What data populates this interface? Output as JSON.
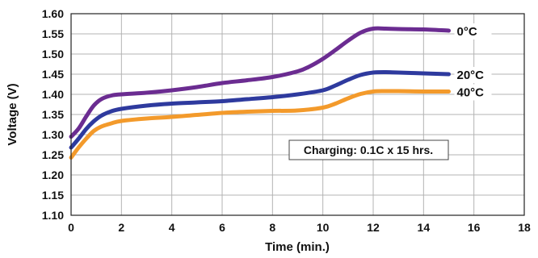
{
  "chart_data": {
    "type": "line",
    "xlabel": "Time (min.)",
    "ylabel": "Voltage (V)",
    "xlim": [
      0,
      18
    ],
    "ylim": [
      1.1,
      1.6
    ],
    "x_ticks": [
      "0",
      "2",
      "4",
      "6",
      "8",
      "10",
      "12",
      "14",
      "16",
      "18"
    ],
    "y_ticks": [
      "1.10",
      "1.15",
      "1.20",
      "1.25",
      "1.30",
      "1.35",
      "1.40",
      "1.45",
      "1.50",
      "1.55",
      "1.60"
    ],
    "grid": true,
    "annotation": "Charging: 0.1C x 15 hrs.",
    "series": [
      {
        "name": "0°C",
        "color": "#6b2c91",
        "x": [
          0,
          0.3,
          0.6,
          0.9,
          1.2,
          1.6,
          2,
          3,
          4,
          5,
          6,
          7,
          8,
          9,
          9.5,
          10,
          10.5,
          11,
          11.5,
          12,
          12.5,
          13,
          14,
          15
        ],
        "y": [
          1.295,
          1.315,
          1.345,
          1.372,
          1.388,
          1.397,
          1.4,
          1.404,
          1.41,
          1.418,
          1.428,
          1.435,
          1.443,
          1.457,
          1.47,
          1.488,
          1.51,
          1.533,
          1.553,
          1.563,
          1.563,
          1.562,
          1.561,
          1.558
        ]
      },
      {
        "name": "20°C",
        "color": "#2e3a9e",
        "x": [
          0,
          0.3,
          0.6,
          0.9,
          1.2,
          1.6,
          2,
          3,
          4,
          5,
          6,
          7,
          8,
          9,
          10,
          10.5,
          11,
          11.5,
          12,
          12.5,
          13,
          14,
          15
        ],
        "y": [
          1.268,
          1.29,
          1.314,
          1.333,
          1.347,
          1.358,
          1.364,
          1.372,
          1.377,
          1.38,
          1.383,
          1.388,
          1.393,
          1.4,
          1.41,
          1.422,
          1.436,
          1.448,
          1.454,
          1.455,
          1.454,
          1.452,
          1.45
        ]
      },
      {
        "name": "40°C",
        "color": "#f39a2b",
        "x": [
          0,
          0.3,
          0.6,
          0.9,
          1.2,
          1.6,
          2,
          3,
          4,
          5,
          6,
          7,
          8,
          9,
          10,
          10.5,
          11,
          11.5,
          12,
          12.5,
          13,
          14,
          15
        ],
        "y": [
          1.243,
          1.268,
          1.29,
          1.309,
          1.32,
          1.328,
          1.334,
          1.34,
          1.344,
          1.349,
          1.354,
          1.357,
          1.359,
          1.36,
          1.367,
          1.377,
          1.39,
          1.401,
          1.407,
          1.408,
          1.408,
          1.407,
          1.407
        ]
      }
    ]
  }
}
